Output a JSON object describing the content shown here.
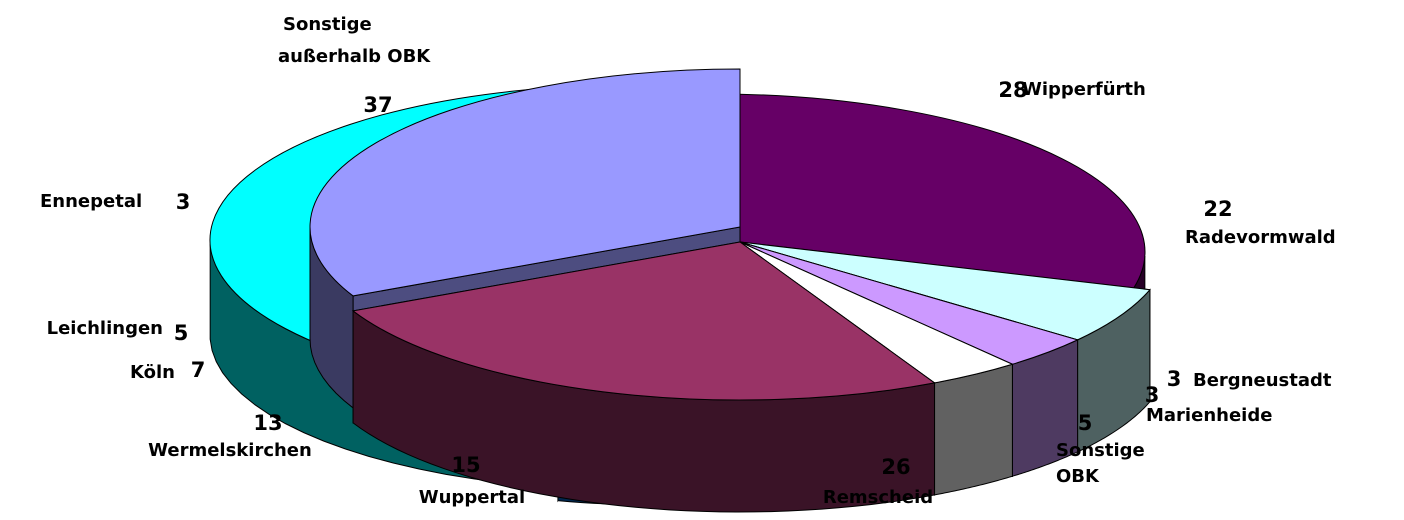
{
  "chart_data": [
    {
      "type": "pie",
      "title": "",
      "slices": [
        {
          "label": [
            "Sonstige",
            "außerhalb OBK"
          ],
          "value": 37,
          "color": "#00ffff"
        },
        {
          "label": [
            "Wuppertal"
          ],
          "value": 15,
          "color": "#0066cc"
        },
        {
          "label": [
            "Wermelskirchen"
          ],
          "value": 13,
          "color": "#ff8080"
        },
        {
          "label": [
            "Köln"
          ],
          "value": 7,
          "color": "#ccccff"
        },
        {
          "label": [
            "Leichlingen"
          ],
          "value": 5,
          "color": "#99ccff"
        },
        {
          "label": [
            "Ennepetal"
          ],
          "value": 3,
          "color": "#ffcc99"
        }
      ]
    },
    {
      "type": "pie",
      "title": "",
      "slices": [
        {
          "label": [
            "Wipperfürth"
          ],
          "value": 28,
          "color": "#9999ff"
        },
        {
          "label": [
            "Radevormwald"
          ],
          "value": 22,
          "color": "#993366"
        },
        {
          "label": [
            "Bergneustadt"
          ],
          "value": 3,
          "color": "#ffffff"
        },
        {
          "label": [
            "Marienheide"
          ],
          "value": 3,
          "color": "#cc99ff"
        },
        {
          "label": [
            "Sonstige",
            "OBK"
          ],
          "value": 5,
          "color": "#ccffff"
        },
        {
          "label": [
            "Remscheid"
          ],
          "value": 26,
          "color": "#660066"
        }
      ]
    }
  ]
}
